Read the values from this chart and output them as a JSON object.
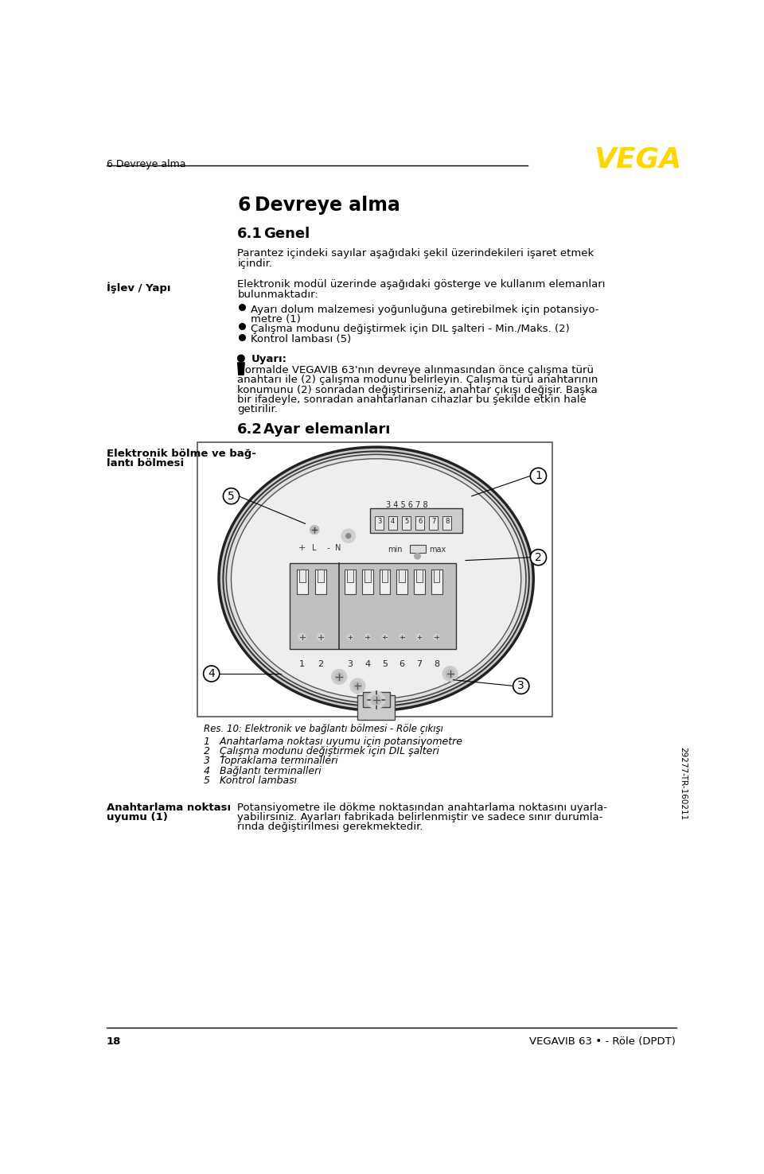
{
  "page_header_text": "6 Devreye alma",
  "vega_color": "#FFD700",
  "section_title": "6   Devreye alma",
  "subsection_title": "6.1   Genel",
  "intro_line1": "Parantez içindeki sayılar aşağıdaki şekil üzerindekileri işaret etmek",
  "intro_line2": "içindir.",
  "islev_yapi_label": "İşlev / Yapı",
  "islev_text1": "Elektronik modül üzerinde aşağıdaki gösterge ve kullanım elemanları",
  "islev_text2": "bulunmaktadır:",
  "bullet1a": "Ayarı dolum malzemesi yoğunluğuna getirebilmek için potansiyo-",
  "bullet1b": "metre (1)",
  "bullet2": "Çalışma modunu değiştirmek için DIL şalteri - Min./Maks. (2)",
  "bullet3": "Kontrol lambası (5)",
  "warning_title": "Uyarı:",
  "warn_line1": "Normalde VEGAVIB 63'nın devreye alınmasından önce çalışma türü",
  "warn_line2": "anahtarı ile (2) çalışma modunu belirleyin. Çalışma türü anahtarının",
  "warn_line3": "konumunu (2) sonradan değiştirirseniz, anahtar çıkışı değişir. Başka",
  "warn_line4": "bir ifadeyle, sonradan anahtarlanan cihazlar bu şekilde etkin hale",
  "warn_line5": "getirilir.",
  "section_title2": "6.2   Ayar elemanları",
  "elektronik_label1": "Elektronik bölme ve bağ-",
  "elektronik_label2": "lantı bölmesi",
  "figure_caption": "Res. 10: Elektronik ve bağlantı bölmesi - Röle çıkışı",
  "legend1": "1   Anahtarlama noktası uyumu için potansiyometre",
  "legend2": "2   Çalışma modunu değiştirmek için DIL şalteri",
  "legend3": "3   Topraklama terminalleri",
  "legend4": "4   Bağlantı terminalleri",
  "legend5": "5   Kontrol lambası",
  "anahtarlama1": "Anahtarlama noktası",
  "anahtarlama2": "uyumu (1)",
  "bottom_line1": "Potansiyometre ile dökme noktasından anahtarlama noktasını uyarla-",
  "bottom_line2": "yabilirsiniz. Ayarları fabrikada belirlenmiştir ve sadece sınır durumla-",
  "bottom_line3": "rında değiştirilmesi gerekmektedir.",
  "page_number": "18",
  "footer_right": "VEGAVIB 63 • - Röle (DPDT)",
  "sidebar_text": "29277-TR-160211",
  "bg_color": "#ffffff",
  "text_color": "#000000",
  "line_color": "#000000",
  "device_outline": "#333333",
  "device_fill": "#e8e8e8",
  "device_inner": "#d0d0d0",
  "callout_circle_color": "#000000"
}
